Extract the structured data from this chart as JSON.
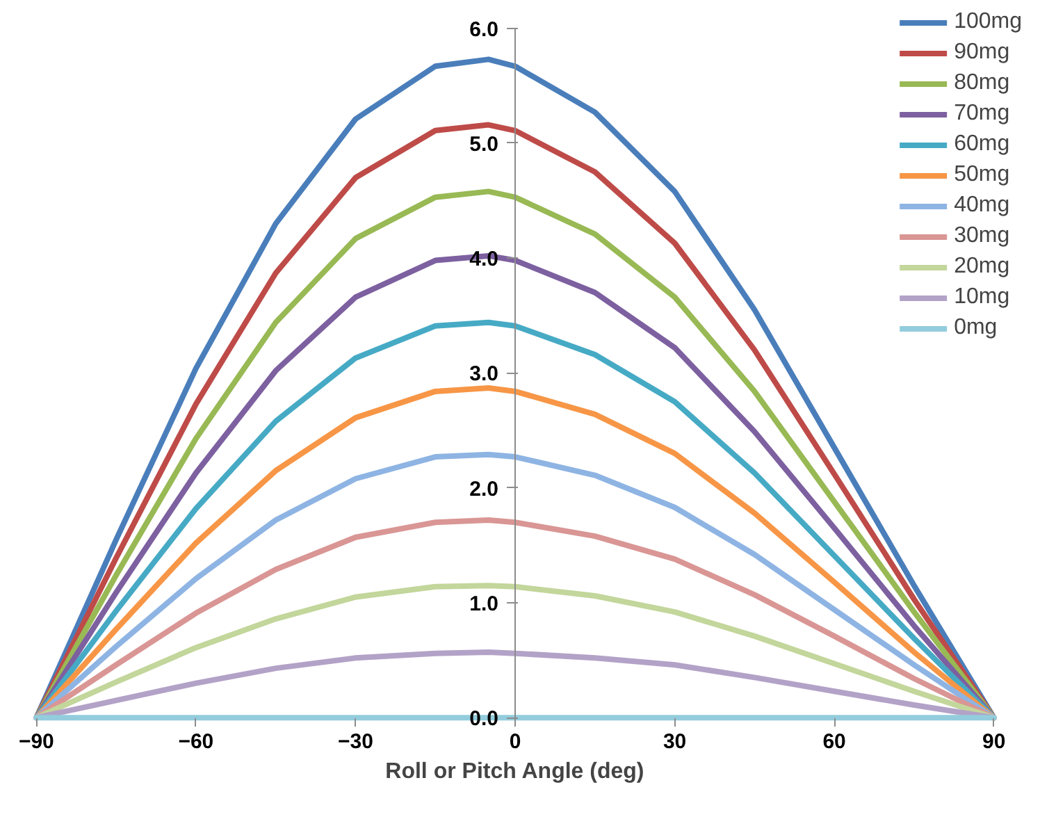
{
  "chart_data": {
    "type": "line",
    "xlabel": "Roll or Pitch Angle (deg)",
    "x": [
      -90,
      -75,
      -60,
      -45,
      -30,
      -15,
      -5,
      0,
      15,
      30,
      45,
      60,
      75,
      90
    ],
    "xlim": [
      -90,
      90
    ],
    "xticks": [
      -90,
      -60,
      -30,
      0,
      30,
      60,
      90
    ],
    "ylim": [
      0,
      6
    ],
    "yticks": [
      {
        "value": 0,
        "label": "0.0"
      },
      {
        "value": 1,
        "label": "1.0"
      },
      {
        "value": 2,
        "label": "2.0"
      },
      {
        "value": 3,
        "label": "3.0"
      },
      {
        "value": 4,
        "label": "4.0"
      },
      {
        "value": 5,
        "label": "5.0"
      },
      {
        "value": 6,
        "label": "6.0"
      }
    ],
    "grid": false,
    "legend": "top right",
    "marker": "none",
    "line_style": "solid",
    "series": [
      {
        "name": "100mg",
        "color": "#4a7ebb",
        "values": [
          0,
          1.55,
          3.04,
          4.3,
          5.21,
          5.67,
          5.73,
          5.67,
          5.27,
          4.58,
          3.55,
          2.35,
          1.15,
          0
        ]
      },
      {
        "name": "90mg",
        "color": "#be4b48",
        "values": [
          0,
          1.39,
          2.73,
          3.87,
          4.7,
          5.11,
          5.16,
          5.11,
          4.75,
          4.13,
          3.2,
          2.12,
          1.03,
          0
        ]
      },
      {
        "name": "80mg",
        "color": "#98b954",
        "values": [
          0,
          1.24,
          2.43,
          3.44,
          4.17,
          4.53,
          4.58,
          4.53,
          4.21,
          3.66,
          2.84,
          1.88,
          0.92,
          0
        ]
      },
      {
        "name": "70mg",
        "color": "#7d60a0",
        "values": [
          0,
          1.09,
          2.13,
          3.02,
          3.66,
          3.98,
          4.02,
          3.98,
          3.7,
          3.22,
          2.49,
          1.65,
          0.8,
          0
        ]
      },
      {
        "name": "60mg",
        "color": "#46aac5",
        "values": [
          0,
          0.93,
          1.82,
          2.58,
          3.13,
          3.41,
          3.44,
          3.41,
          3.16,
          2.75,
          2.13,
          1.41,
          0.69,
          0
        ]
      },
      {
        "name": "50mg",
        "color": "#f79646",
        "values": [
          0,
          0.77,
          1.52,
          2.15,
          2.61,
          2.84,
          2.87,
          2.84,
          2.64,
          2.3,
          1.78,
          1.18,
          0.57,
          0
        ]
      },
      {
        "name": "40mg",
        "color": "#8eb4e3",
        "values": [
          0,
          0.62,
          1.21,
          1.72,
          2.08,
          2.27,
          2.29,
          2.27,
          2.11,
          1.83,
          1.42,
          0.94,
          0.46,
          0
        ]
      },
      {
        "name": "30mg",
        "color": "#d99694",
        "values": [
          0,
          0.46,
          0.91,
          1.29,
          1.57,
          1.7,
          1.72,
          1.7,
          1.58,
          1.38,
          1.07,
          0.71,
          0.34,
          0
        ]
      },
      {
        "name": "20mg",
        "color": "#c3d69b",
        "values": [
          0,
          0.31,
          0.61,
          0.86,
          1.05,
          1.14,
          1.15,
          1.14,
          1.06,
          0.92,
          0.71,
          0.47,
          0.23,
          0
        ]
      },
      {
        "name": "10mg",
        "color": "#b3a2c7",
        "values": [
          0,
          0.15,
          0.3,
          0.43,
          0.52,
          0.56,
          0.57,
          0.56,
          0.52,
          0.46,
          0.35,
          0.23,
          0.11,
          0
        ]
      },
      {
        "name": "0mg",
        "color": "#93cddd",
        "values": [
          0,
          0,
          0,
          0,
          0,
          0,
          0,
          0,
          0,
          0,
          0,
          0,
          0,
          0
        ]
      }
    ]
  }
}
